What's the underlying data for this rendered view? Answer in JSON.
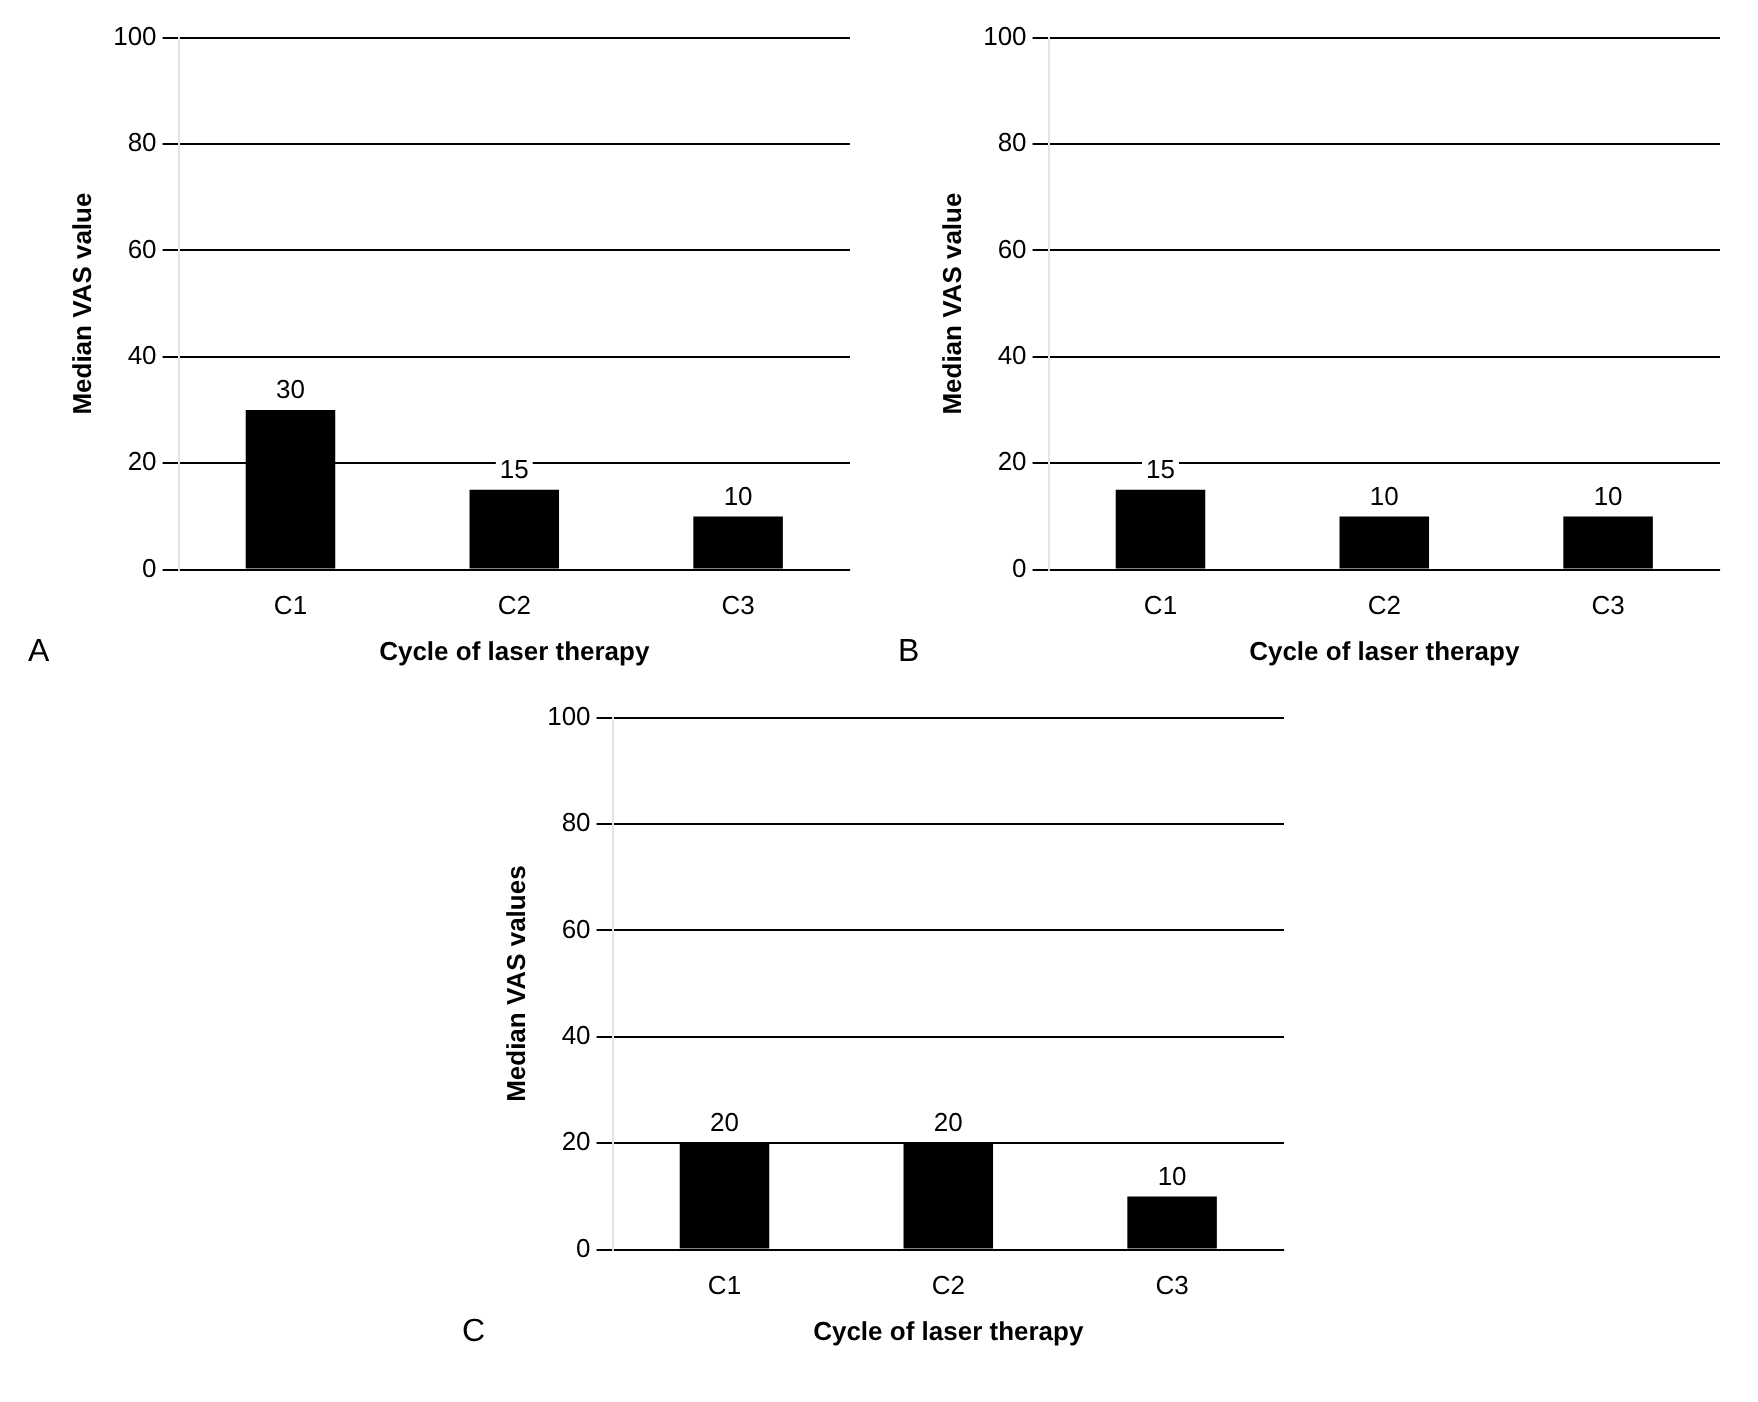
{
  "chart_data": [
    {
      "type": "bar",
      "categories": [
        "C1",
        "C2",
        "C3"
      ],
      "values": [
        30,
        15,
        10
      ],
      "color": "#000000",
      "ylabel": "Median VAS value",
      "xlabel": "Cycle of laser therapy",
      "ylim": [
        0,
        100
      ],
      "yticks": [
        0,
        20,
        40,
        60,
        80,
        100
      ],
      "grid": "y",
      "data_labels": true,
      "annotations": [
        "A"
      ]
    },
    {
      "type": "bar",
      "categories": [
        "C1",
        "C2",
        "C3"
      ],
      "values": [
        15,
        10,
        10
      ],
      "color": "#000000",
      "ylabel": "Median VAS value",
      "xlabel": "Cycle of laser therapy",
      "ylim": [
        0,
        100
      ],
      "yticks": [
        0,
        20,
        40,
        60,
        80,
        100
      ],
      "grid": "y",
      "data_labels": true,
      "annotations": [
        "B"
      ]
    },
    {
      "type": "bar",
      "categories": [
        "C1",
        "C2",
        "C3"
      ],
      "values": [
        20,
        20,
        10
      ],
      "color": "#000000",
      "ylabel": "Median VAS values",
      "xlabel": "Cycle of laser therapy",
      "ylim": [
        0,
        100
      ],
      "yticks": [
        0,
        20,
        40,
        60,
        80,
        100
      ],
      "grid": "y",
      "data_labels": true,
      "annotations": [
        "C"
      ]
    }
  ]
}
